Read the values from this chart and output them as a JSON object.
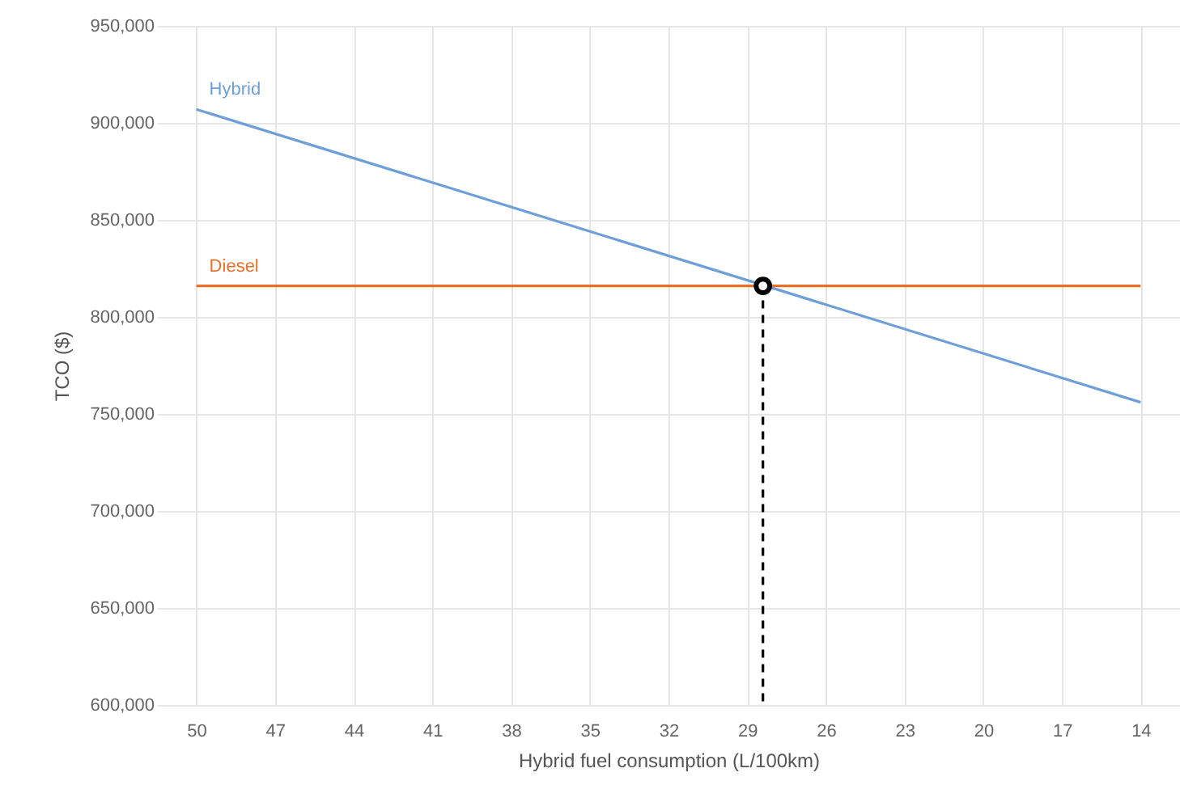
{
  "chart_data": {
    "type": "line",
    "xlabel": "Hybrid fuel consumption (L/100km)",
    "ylabel": "TCO ($)",
    "xlim": [
      51.5,
      12.5
    ],
    "xticks": [
      50,
      47,
      44,
      41,
      38,
      35,
      32,
      29,
      26,
      23,
      20,
      17,
      14
    ],
    "ylim": [
      600000,
      950000
    ],
    "yticks": [
      {
        "value": 600000,
        "label": "600,000"
      },
      {
        "value": 650000,
        "label": "650,000"
      },
      {
        "value": 700000,
        "label": "700,000"
      },
      {
        "value": 750000,
        "label": "750,000"
      },
      {
        "value": 800000,
        "label": "800,000"
      },
      {
        "value": 850000,
        "label": "850,000"
      },
      {
        "value": 900000,
        "label": "900,000"
      },
      {
        "value": 950000,
        "label": "950,000"
      }
    ],
    "grid": true,
    "series": [
      {
        "name": "Hybrid",
        "color": "#6f9fd8",
        "x": [
          50,
          14
        ],
        "values": [
          907000,
          756000
        ]
      },
      {
        "name": "Diesel",
        "color": "#e8702a",
        "x": [
          50,
          14
        ],
        "values": [
          816000,
          816000
        ]
      },
      {
        "type": "line",
        "color": "#000000",
        "line_style": "dashed",
        "x": [
          28.4,
          28.4
        ],
        "values": [
          816000,
          600000
        ]
      },
      {
        "type": "scatter",
        "color": "#000000",
        "marker": "circle",
        "x": [
          28.4
        ],
        "values": [
          816000
        ]
      }
    ]
  }
}
